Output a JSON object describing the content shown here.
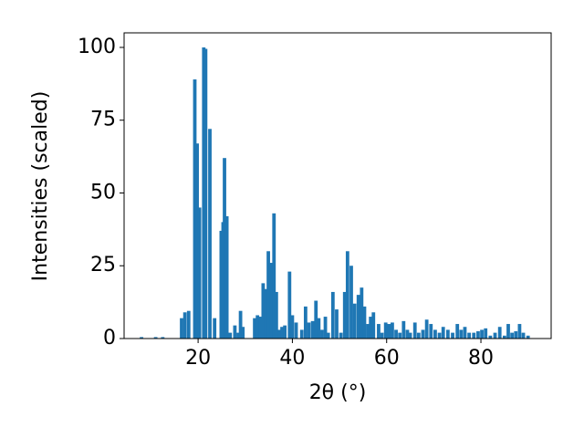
{
  "chart_data": {
    "type": "bar",
    "xlabel": "2θ (°)",
    "ylabel": "Intensities (scaled)",
    "color": "#1f77b4",
    "x": [
      8,
      11,
      12.5,
      16.5,
      17.2,
      18,
      19.3,
      19.8,
      20.3,
      21.2,
      21.6,
      22.5,
      23.5,
      24.9,
      25.3,
      25.6,
      26.1,
      26.8,
      27.8,
      28.5,
      29,
      29.5,
      32,
      32.6,
      33.2,
      33.8,
      34.3,
      34.9,
      35.5,
      36.1,
      36.6,
      37.2,
      37.8,
      38.4,
      39.4,
      40,
      40.8,
      42,
      42.8,
      43.5,
      44.3,
      45,
      45.6,
      46.3,
      47,
      47.6,
      48.6,
      49.4,
      50.3,
      51.1,
      51.7,
      52.5,
      53.2,
      54,
      54.7,
      55.3,
      56,
      56.6,
      57.2,
      58.3,
      59,
      59.8,
      60.5,
      61.2,
      62,
      62.8,
      63.6,
      64.4,
      65,
      66,
      66.8,
      67.7,
      68.5,
      69.4,
      70.3,
      71.2,
      72,
      73,
      74,
      75,
      75.8,
      76.6,
      77.5,
      78.5,
      79.4,
      80.2,
      81,
      82,
      83,
      84,
      85,
      85.8,
      86.6,
      87.4,
      88.2,
      89,
      90
    ],
    "values": [
      0.5,
      0.5,
      0.5,
      7,
      9,
      9.5,
      89,
      67,
      45,
      100,
      99.5,
      72,
      7,
      37,
      40,
      62,
      42,
      2,
      4.5,
      2,
      9.5,
      4,
      7,
      8,
      7.5,
      19,
      17,
      30,
      26,
      43,
      16,
      3,
      4,
      4.5,
      23,
      8,
      5.5,
      3,
      11,
      5.5,
      6,
      13,
      7,
      3,
      7.5,
      2,
      16,
      10,
      2,
      16,
      30,
      25,
      12,
      15,
      17.5,
      11,
      5,
      7.5,
      9,
      5,
      2,
      5.5,
      5,
      5.5,
      3,
      2,
      6,
      3,
      2,
      5.5,
      2,
      3,
      6.5,
      5,
      3,
      2,
      4,
      3,
      2,
      5,
      3,
      4,
      2,
      2,
      2.5,
      3,
      3.5,
      1,
      2,
      4,
      1,
      5,
      2,
      2.5,
      5,
      2,
      1
    ],
    "xlim": [
      4.3,
      94.9
    ],
    "ylim": [
      0,
      105
    ],
    "xticks": [
      20,
      40,
      60,
      80
    ],
    "yticks": [
      0,
      25,
      50,
      75,
      100
    ]
  }
}
